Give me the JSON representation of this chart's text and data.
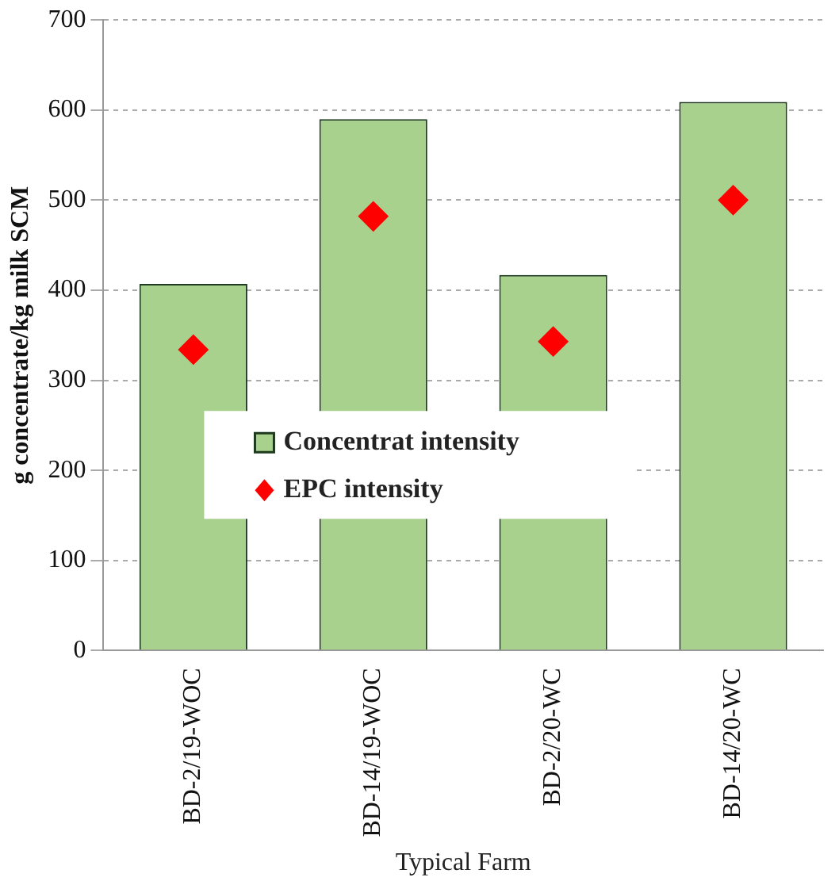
{
  "chart_data": {
    "type": "bar",
    "xlabel": "Typical Farm",
    "ylabel": "g concentrate/kg milk SCM",
    "categories": [
      "BD-2/19-WOC",
      "BD-14/19-WOC",
      "BD-2/20-WC",
      "BD-14/20-WC"
    ],
    "series": [
      {
        "name": "Concentrat intensity",
        "color": "#a9d18e",
        "values": [
          407,
          590,
          417,
          609
        ]
      },
      {
        "name": "EPC intensity",
        "type": "scatter",
        "color": "#ff0000",
        "x": [
          "BD-2/19-WOC",
          "BD-14/19-WOC",
          "BD-2/20-WC",
          "BD-14/20-WC"
        ],
        "values": [
          334,
          482,
          343,
          500
        ],
        "marker": "diamond"
      }
    ],
    "ylim": [
      0,
      700
    ],
    "yticks": [
      0,
      100,
      200,
      300,
      400,
      500,
      600,
      700
    ],
    "grid": "y",
    "legend": "bottom"
  }
}
